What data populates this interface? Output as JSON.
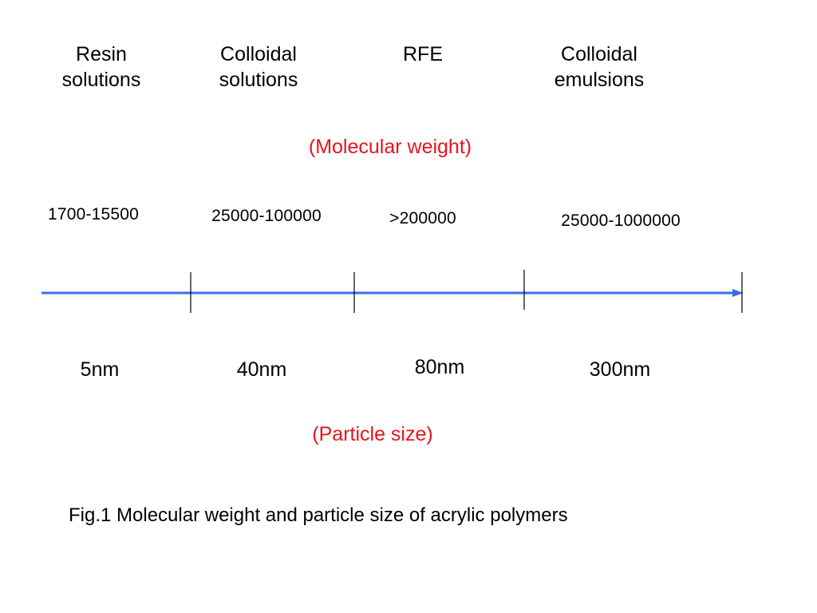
{
  "categories": [
    {
      "line1": "Resin",
      "line2": "solutions"
    },
    {
      "line1": "Colloidal",
      "line2": "solutions"
    },
    {
      "line1": "RFE",
      "line2": ""
    },
    {
      "line1": "Colloidal",
      "line2": "emulsions"
    }
  ],
  "molecular_weight_label": "(Molecular weight)",
  "molecular_weights": [
    "1700-15500",
    "25000-100000",
    ">200000",
    "25000-1000000"
  ],
  "particle_size_label": "(Particle size)",
  "particle_sizes": [
    "5nm",
    "40nm",
    "80nm",
    "300nm"
  ],
  "caption": "Fig.1 Molecular weight and particle size of acrylic polymers",
  "colors": {
    "axis": "#3d6ee8",
    "label_red": "#e8141b",
    "tick": "#000000"
  }
}
